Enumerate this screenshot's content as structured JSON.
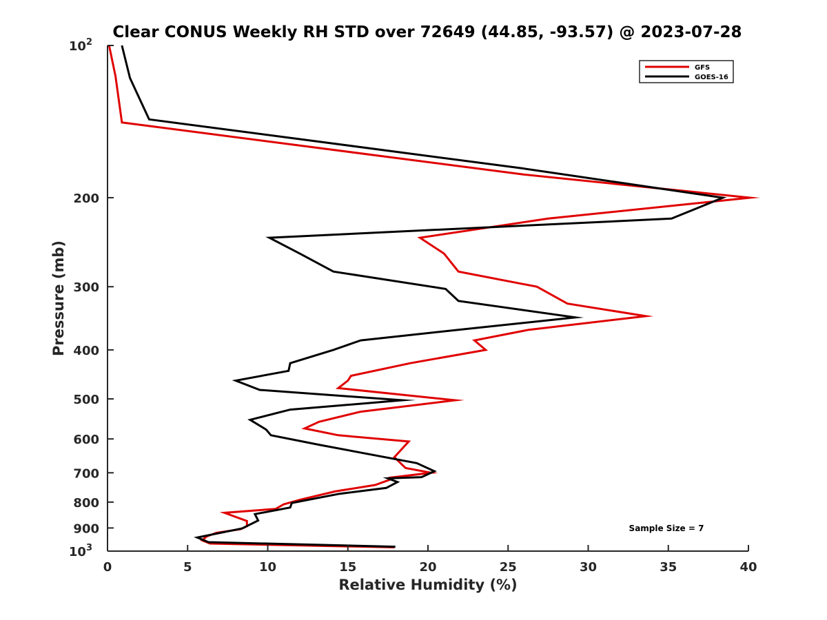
{
  "chart_data": {
    "type": "line",
    "title": "Clear CONUS Weekly RH STD over 72649 (44.85, -93.57) @ 2023-07-28",
    "xlabel": "Relative Humidity (%)",
    "ylabel": "Pressure (mb)",
    "xlim": [
      0,
      40
    ],
    "ylim": [
      100,
      1000
    ],
    "y_scale": "log",
    "y_reversed": true,
    "x_ticks": [
      0,
      5,
      10,
      15,
      20,
      25,
      30,
      35,
      40
    ],
    "y_ticks": [
      {
        "value": 100,
        "label": "10",
        "sup": "2"
      },
      {
        "value": 200,
        "label": "200"
      },
      {
        "value": 300,
        "label": "300"
      },
      {
        "value": 400,
        "label": "400"
      },
      {
        "value": 500,
        "label": "500"
      },
      {
        "value": 600,
        "label": "600"
      },
      {
        "value": 700,
        "label": "700"
      },
      {
        "value": 800,
        "label": "800"
      },
      {
        "value": 900,
        "label": "900"
      },
      {
        "value": 1000,
        "label": "10",
        "sup": "3"
      }
    ],
    "legend_position": "top-right",
    "annotation": "Sample Size = 7",
    "series": [
      {
        "name": "GFS",
        "color": "#e00000",
        "points": [
          [
            0.1,
            100
          ],
          [
            0.5,
            115
          ],
          [
            0.9,
            142
          ],
          [
            26.0,
            180
          ],
          [
            40.1,
            200
          ],
          [
            27.5,
            220
          ],
          [
            19.5,
            240
          ],
          [
            21.0,
            258
          ],
          [
            21.9,
            280
          ],
          [
            26.8,
            300
          ],
          [
            28.7,
            324
          ],
          [
            33.6,
            343
          ],
          [
            26.3,
            365
          ],
          [
            22.9,
            383
          ],
          [
            23.6,
            400
          ],
          [
            18.9,
            425
          ],
          [
            15.2,
            450
          ],
          [
            15.0,
            460
          ],
          [
            14.4,
            476
          ],
          [
            21.7,
            503
          ],
          [
            15.8,
            530
          ],
          [
            13.2,
            555
          ],
          [
            12.3,
            572
          ],
          [
            14.4,
            590
          ],
          [
            18.8,
            607
          ],
          [
            17.9,
            652
          ],
          [
            18.6,
            685
          ],
          [
            20.2,
            700
          ],
          [
            17.6,
            716
          ],
          [
            17.6,
            723
          ],
          [
            16.7,
            740
          ],
          [
            14.2,
            762
          ],
          [
            12.1,
            790
          ],
          [
            11.0,
            808
          ],
          [
            10.5,
            825
          ],
          [
            7.3,
            840
          ],
          [
            8.7,
            872
          ],
          [
            8.7,
            893
          ],
          [
            8.3,
            905
          ],
          [
            6.8,
            920
          ],
          [
            6.2,
            935
          ],
          [
            5.9,
            952
          ],
          [
            6.4,
            966
          ],
          [
            17.9,
            983
          ]
        ]
      },
      {
        "name": "GOES-16",
        "color": "#000000",
        "points": [
          [
            0.9,
            100
          ],
          [
            1.4,
            116
          ],
          [
            2.6,
            140
          ],
          [
            25.9,
            175
          ],
          [
            38.4,
            200
          ],
          [
            35.2,
            220
          ],
          [
            10.1,
            240
          ],
          [
            12.0,
            258
          ],
          [
            14.1,
            280
          ],
          [
            21.1,
            303
          ],
          [
            21.9,
            320
          ],
          [
            29.2,
            345
          ],
          [
            21.9,
            365
          ],
          [
            15.8,
            383
          ],
          [
            14.1,
            400
          ],
          [
            11.4,
            425
          ],
          [
            11.3,
            440
          ],
          [
            8.0,
            460
          ],
          [
            9.5,
            480
          ],
          [
            18.4,
            503
          ],
          [
            11.4,
            525
          ],
          [
            8.9,
            550
          ],
          [
            9.9,
            575
          ],
          [
            10.2,
            590
          ],
          [
            13.2,
            616
          ],
          [
            19.3,
            670
          ],
          [
            20.4,
            695
          ],
          [
            19.6,
            714
          ],
          [
            17.5,
            718
          ],
          [
            18.1,
            730
          ],
          [
            17.4,
            750
          ],
          [
            14.5,
            770
          ],
          [
            11.5,
            803
          ],
          [
            11.4,
            820
          ],
          [
            9.2,
            845
          ],
          [
            9.4,
            870
          ],
          [
            8.4,
            902
          ],
          [
            5.6,
            940
          ],
          [
            6.3,
            960
          ],
          [
            17.9,
            980
          ],
          [
            17.9,
            985
          ]
        ]
      }
    ]
  }
}
